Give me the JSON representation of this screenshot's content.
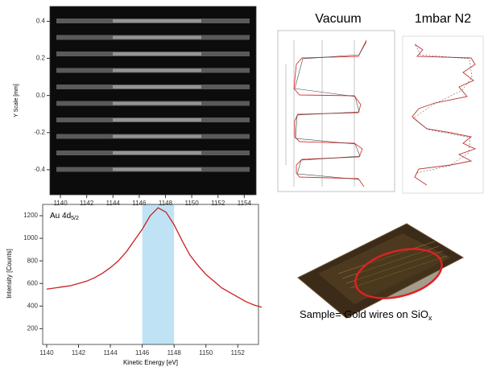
{
  "chart_data": [
    {
      "type": "image",
      "ylabel": "Y Scale [mm]",
      "xlim": [
        1139.2,
        1154.9
      ],
      "xticks": [
        1140,
        1142,
        1144,
        1146,
        1148,
        1150,
        1152,
        1154
      ],
      "ylim": [
        -0.535,
        0.48
      ],
      "yticks": [
        0.4,
        0.2,
        {
          "value": 0,
          "label": "0.0"
        },
        -0.2,
        -0.4
      ]
    },
    {
      "type": "line",
      "xlabel": "Kinetic Energy [eV]",
      "ylabel": "Intensity [Counts]",
      "annotation": "Au 4d",
      "annotation_sub": "5/2",
      "xlim": [
        1139.75,
        1153.3
      ],
      "xticks": [
        1140,
        1142,
        1144,
        1146,
        1148,
        1150,
        1152
      ],
      "ylim": [
        60,
        1300
      ],
      "yticks": [
        200,
        400,
        600,
        800,
        1000,
        1200
      ],
      "highlight": [
        1146,
        1148
      ],
      "highlight_color": "#bfe3f5",
      "x": [
        1140,
        1140.5,
        1141,
        1141.5,
        1142,
        1142.5,
        1143,
        1143.5,
        1144,
        1144.5,
        1145,
        1145.5,
        1146,
        1146.5,
        1147,
        1147.5,
        1148,
        1148.5,
        1149,
        1149.5,
        1150,
        1150.5,
        1151,
        1151.5,
        1152,
        1152.5,
        1153,
        1153.5
      ],
      "series": [
        {
          "color": "#cc1f1f",
          "values": [
            550,
            560,
            570,
            580,
            600,
            620,
            650,
            690,
            740,
            800,
            880,
            980,
            1080,
            1200,
            1270,
            1230,
            1120,
            980,
            850,
            760,
            680,
            620,
            560,
            520,
            480,
            440,
            410,
            390
          ]
        }
      ]
    }
  ],
  "panels": {
    "vacuum_title": "Vacuum",
    "n2_title": "1mbar N2",
    "sample_caption": "Sample= Gold wires on SiO",
    "sample_caption_sub": "x"
  }
}
